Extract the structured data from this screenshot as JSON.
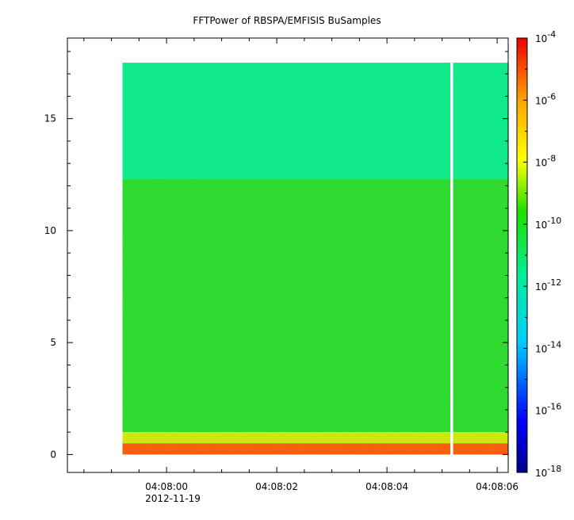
{
  "chart_data": {
    "type": "heatmap",
    "title": "FFTPower of RBSPA/EMFISIS  BuSamples",
    "xlabel": "",
    "ylabel": "",
    "x_ticks": [
      "04:08:00",
      "04:08:02",
      "04:08:04",
      "04:08:06"
    ],
    "x_date_label": "2012-11-19",
    "y_ticks": [
      "0",
      "5",
      "10",
      "15"
    ],
    "ylim": [
      -0.8,
      18.6
    ],
    "xlim_seconds_after_04_08": [
      -1.8,
      6.2
    ],
    "data_extent": {
      "x_start": "04:07:59.2",
      "x_end": "04:08:06.2",
      "y_min": 0,
      "y_max": 17.5
    },
    "data_gap": {
      "x_start": "04:08:05.15",
      "x_end": "04:08:05.2"
    },
    "colorbar": {
      "scale": "log",
      "range": [
        1e-18,
        0.0001
      ],
      "tick_exponents": [
        "-4",
        "-6",
        "-8",
        "-10",
        "-12",
        "-14",
        "-16",
        "-18"
      ],
      "tick_base": "10"
    },
    "bands": [
      {
        "y_range": [
          12.3,
          17.5
        ],
        "power": "1e-12",
        "color": "#00ee88"
      },
      {
        "y_range": [
          1.0,
          12.3
        ],
        "power": "1e-10",
        "color": "#22dd22"
      },
      {
        "y_range": [
          0.5,
          1.0
        ],
        "power": "1e-9",
        "color": "#ccee00"
      },
      {
        "y_range": [
          0.0,
          0.5
        ],
        "power": "1e-7",
        "color": "#ff5500"
      }
    ]
  }
}
